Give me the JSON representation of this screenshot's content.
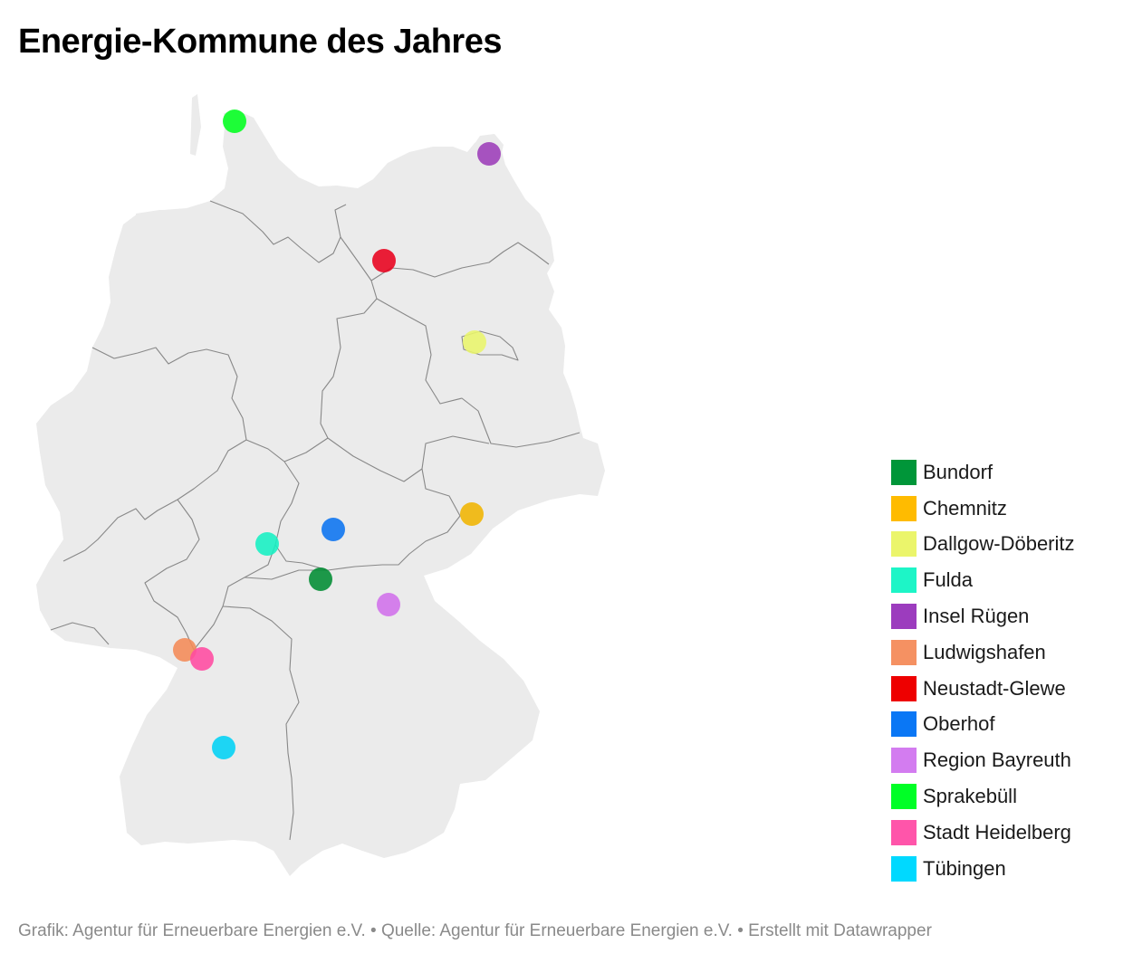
{
  "title": "Energie-Kommune des Jahres",
  "map": {
    "region": "Deutschland",
    "land_color": "#ebebeb",
    "border_color": "#888888"
  },
  "markers": [
    {
      "id": "sprakebuell",
      "label": "Sprakebüll",
      "color": "#00ff1e"
    },
    {
      "id": "insel-ruegen",
      "label": "Insel Rügen",
      "color": "#9c3cb8"
    },
    {
      "id": "neustadt-glewe",
      "label": "Neustadt-Glewe",
      "color": "#e8001c"
    },
    {
      "id": "dallgow-doeberitz",
      "label": "Dallgow-Döberitz",
      "color": "#e9f56b"
    },
    {
      "id": "chemnitz",
      "label": "Chemnitz",
      "color": "#f0b400"
    },
    {
      "id": "oberhof",
      "label": "Oberhof",
      "color": "#0a73f0"
    },
    {
      "id": "fulda",
      "label": "Fulda",
      "color": "#14f0c3"
    },
    {
      "id": "bundorf",
      "label": "Bundorf",
      "color": "#008c32"
    },
    {
      "id": "region-bayreuth",
      "label": "Region Bayreuth",
      "color": "#d070ea"
    },
    {
      "id": "ludwigshafen",
      "label": "Ludwigshafen",
      "color": "#f48a57"
    },
    {
      "id": "stadt-heidelberg",
      "label": "Stadt Heidelberg",
      "color": "#ff4aa0"
    },
    {
      "id": "tuebingen",
      "label": "Tübingen",
      "color": "#00d2f5"
    }
  ],
  "legend": [
    {
      "label": "Bundorf",
      "color": "#009639"
    },
    {
      "label": "Chemnitz",
      "color": "#ffbb00"
    },
    {
      "label": "Dallgow-Döberitz",
      "color": "#ebf56b"
    },
    {
      "label": "Fulda",
      "color": "#1df5c7"
    },
    {
      "label": "Insel Rügen",
      "color": "#9c3cbe"
    },
    {
      "label": "Ludwigshafen",
      "color": "#f59162"
    },
    {
      "label": "Neustadt-Glewe",
      "color": "#ee0000"
    },
    {
      "label": "Oberhof",
      "color": "#0a77f5"
    },
    {
      "label": "Region Bayreuth",
      "color": "#d37cf0"
    },
    {
      "label": "Sprakebüll",
      "color": "#00ff26"
    },
    {
      "label": "Stadt Heidelberg",
      "color": "#ff55aa"
    },
    {
      "label": "Tübingen",
      "color": "#00d9ff"
    }
  ],
  "footer": "Grafik: Agentur für Erneuerbare Energien e.V. • Quelle: Agentur für Erneuerbare Energien e.V. • Erstellt mit Datawrapper"
}
